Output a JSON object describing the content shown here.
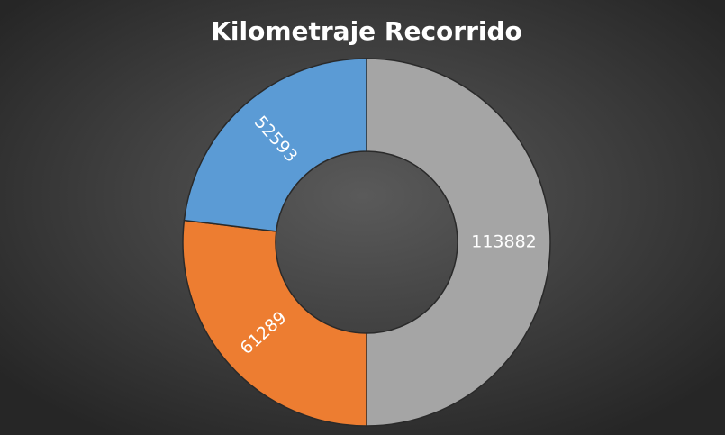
{
  "chart_data": {
    "type": "donut",
    "title": "Kilometraje Recorrido",
    "values": [
      113882,
      61289,
      52593
    ],
    "colors": [
      "#a5a5a5",
      "#ed7d31",
      "#5b9bd5"
    ]
  }
}
